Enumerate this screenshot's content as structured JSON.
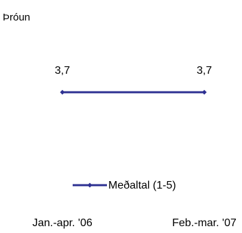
{
  "chart_data": {
    "type": "line",
    "title": "Þróun",
    "categories": [
      "Jan.-apr. '06",
      "Feb.-mar. '07"
    ],
    "series": [
      {
        "name": "Meðaltal (1-5)",
        "values": [
          3.7,
          3.7
        ],
        "data_labels": [
          "3,7",
          "3,7"
        ],
        "color": "#2e3192"
      }
    ],
    "ylim": [
      1,
      5
    ],
    "grid": false,
    "legend_position": "bottom"
  }
}
